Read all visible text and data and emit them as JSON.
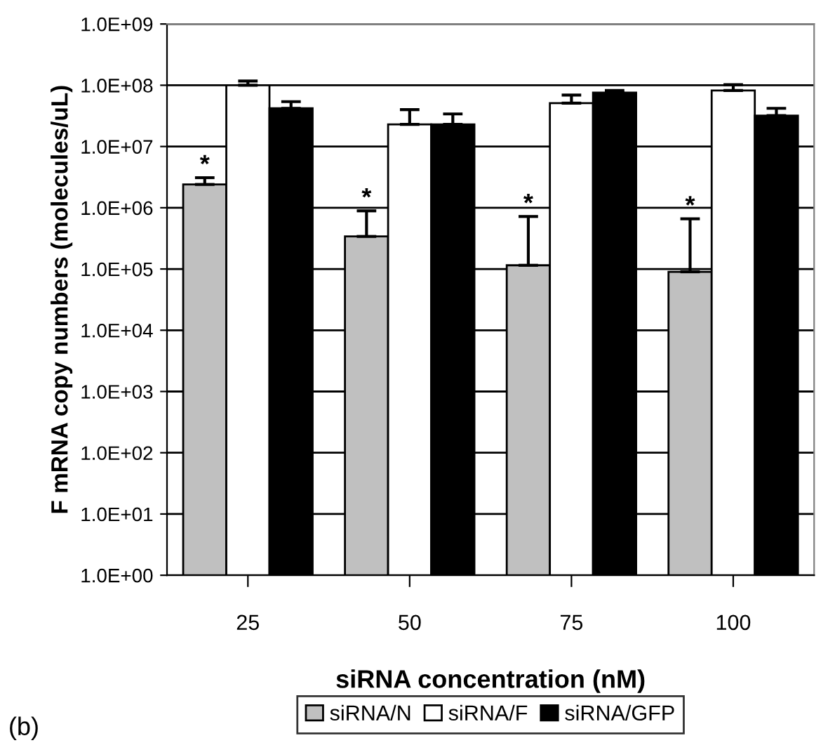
{
  "chart_data": {
    "type": "bar",
    "xlabel": "siRNA concentration (nM)",
    "ylabel": "F mRNA copy numbers (molecules/uL)",
    "categories": [
      "25",
      "50",
      "75",
      "100"
    ],
    "series": [
      {
        "name": "siRNA/N",
        "color": "#c0c0c0",
        "values": [
          2400000.0,
          340000.0,
          115000.0,
          90000.0
        ],
        "errors": [
          [
            2400000.0,
            3100000.0
          ],
          [
            340000.0,
            890000.0
          ],
          [
            115000.0,
            720000.0
          ],
          [
            90000.0,
            660000.0
          ]
        ]
      },
      {
        "name": "siRNA/F",
        "color": "#ffffff",
        "values": [
          100000000.0,
          23000000.0,
          51000000.0,
          82000000.0
        ],
        "errors": [
          [
            100000000.0,
            117000000.0
          ],
          [
            23000000.0,
            40000000.0
          ],
          [
            51000000.0,
            69000000.0
          ],
          [
            82000000.0,
            102000000.0
          ]
        ]
      },
      {
        "name": "siRNA/GFP",
        "color": "#000000",
        "values": [
          42000000.0,
          23000000.0,
          76000000.0,
          32000000.0
        ],
        "errors": [
          [
            42000000.0,
            54000000.0
          ],
          [
            23000000.0,
            34000000.0
          ],
          [
            76000000.0,
            82000000.0
          ],
          [
            32000000.0,
            42000000.0
          ]
        ]
      }
    ],
    "log": "y",
    "ylim": [
      1,
      1000000000.0
    ],
    "yticks": [
      {
        "value": 1,
        "label": "1.0E+00"
      },
      {
        "value": 10,
        "label": "1.0E+01"
      },
      {
        "value": 100,
        "label": "1.0E+02"
      },
      {
        "value": 1000,
        "label": "1.0E+03"
      },
      {
        "value": 10000,
        "label": "1.0E+04"
      },
      {
        "value": 100000,
        "label": "1.0E+05"
      },
      {
        "value": 1000000,
        "label": "1.0E+06"
      },
      {
        "value": 10000000,
        "label": "1.0E+07"
      },
      {
        "value": 100000000,
        "label": "1.0E+08"
      },
      {
        "value": 1000000000,
        "label": "1.0E+09"
      }
    ],
    "grid": "y",
    "legend": "bottom",
    "annotations": [
      "*",
      "*",
      "*",
      "*",
      "(b)"
    ]
  }
}
